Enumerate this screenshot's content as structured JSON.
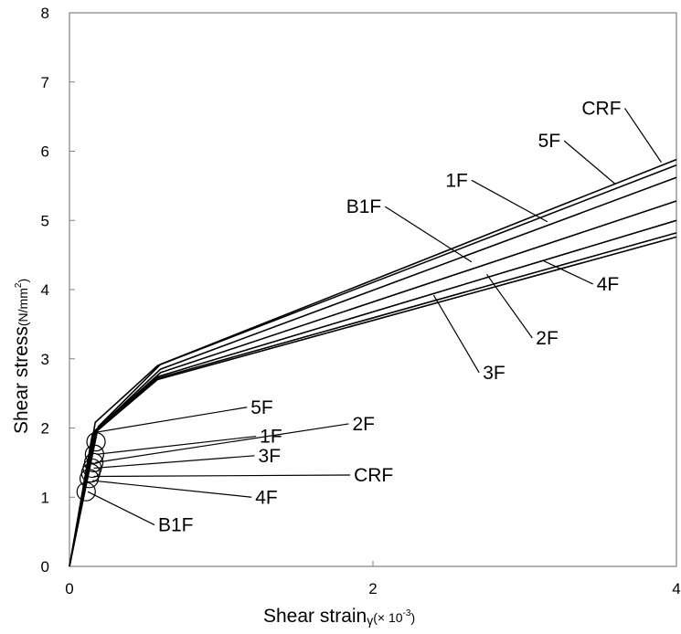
{
  "chart_data": {
    "type": "line",
    "xlabel": {
      "main": "Shear strain",
      "symbol": "γ",
      "unit_prefix": "(× 10",
      "unit_exp": "-3",
      "unit_suffix": ")"
    },
    "ylabel": {
      "main": "Shear stress",
      "unit_prefix": "(N/mm",
      "unit_exp": "2",
      "unit_suffix": ")"
    },
    "xlim": [
      0,
      4
    ],
    "ylim": [
      0,
      8
    ],
    "xticks": [
      0,
      2,
      4
    ],
    "yticks": [
      0,
      1,
      2,
      3,
      4,
      5,
      6,
      7,
      8
    ],
    "grid": false,
    "legend": "none",
    "series": [
      {
        "label": "CRF",
        "points": [
          [
            0,
            0
          ],
          [
            0.19,
            2.02
          ],
          [
            0.6,
            2.92
          ],
          [
            4,
            5.88
          ]
        ]
      },
      {
        "label": "5F",
        "points": [
          [
            0,
            0
          ],
          [
            0.17,
            2.08
          ],
          [
            0.58,
            2.9
          ],
          [
            4,
            5.8
          ]
        ]
      },
      {
        "label": "1F",
        "points": [
          [
            0,
            0
          ],
          [
            0.18,
            1.98
          ],
          [
            0.6,
            2.85
          ],
          [
            4,
            5.62
          ]
        ]
      },
      {
        "label": "B1F",
        "points": [
          [
            0,
            0
          ],
          [
            0.17,
            1.96
          ],
          [
            0.6,
            2.8
          ],
          [
            4,
            5.28
          ]
        ]
      },
      {
        "label": "4F",
        "points": [
          [
            0,
            0
          ],
          [
            0.16,
            1.95
          ],
          [
            0.58,
            2.74
          ],
          [
            4,
            5.0
          ]
        ]
      },
      {
        "label": "2F",
        "points": [
          [
            0,
            0
          ],
          [
            0.16,
            1.92
          ],
          [
            0.58,
            2.72
          ],
          [
            4,
            4.82
          ]
        ]
      },
      {
        "label": "3F",
        "points": [
          [
            0,
            0
          ],
          [
            0.15,
            1.9
          ],
          [
            0.58,
            2.7
          ],
          [
            4,
            4.76
          ]
        ]
      }
    ],
    "yield_markers": [
      {
        "label": "5F",
        "x": 0.175,
        "y": 1.8
      },
      {
        "label": "1F",
        "x": 0.165,
        "y": 1.62
      },
      {
        "label": "2F",
        "x": 0.16,
        "y": 1.5
      },
      {
        "label": "3F",
        "x": 0.15,
        "y": 1.42
      },
      {
        "label": "CRF",
        "x": 0.14,
        "y": 1.35
      },
      {
        "label": "4F",
        "x": 0.13,
        "y": 1.27
      },
      {
        "label": "B1F",
        "x": 0.11,
        "y": 1.08
      }
    ],
    "annotations": [
      {
        "text": "CRF",
        "target": [
          3.9,
          5.84
        ],
        "text_pos": [
          3.66,
          6.62
        ]
      },
      {
        "text": "5F",
        "target": [
          3.6,
          5.52
        ],
        "text_pos": [
          3.26,
          6.15
        ]
      },
      {
        "text": "1F",
        "target": [
          3.15,
          4.98
        ],
        "text_pos": [
          2.65,
          5.58
        ]
      },
      {
        "text": "B1F",
        "target": [
          2.65,
          4.4
        ],
        "text_pos": [
          2.08,
          5.2
        ]
      },
      {
        "text": "4F",
        "target": [
          3.12,
          4.42
        ],
        "text_pos": [
          3.45,
          4.08
        ]
      },
      {
        "text": "2F",
        "target": [
          2.75,
          4.22
        ],
        "text_pos": [
          3.05,
          3.3
        ]
      },
      {
        "text": "3F",
        "target": [
          2.4,
          3.92
        ],
        "text_pos": [
          2.7,
          2.8
        ]
      },
      {
        "text": "5F",
        "target": [
          0.18,
          1.94
        ],
        "text_pos": [
          1.17,
          2.3
        ]
      },
      {
        "text": "1F",
        "target": [
          0.18,
          1.62
        ],
        "text_pos": [
          1.23,
          1.88
        ]
      },
      {
        "text": "2F",
        "target": [
          0.17,
          1.5
        ],
        "text_pos": [
          1.84,
          2.06
        ]
      },
      {
        "text": "3F",
        "target": [
          0.16,
          1.42
        ],
        "text_pos": [
          1.22,
          1.6
        ]
      },
      {
        "text": "CRF",
        "target": [
          0.16,
          1.3
        ],
        "text_pos": [
          1.85,
          1.32
        ]
      },
      {
        "text": "4F",
        "target": [
          0.15,
          1.24
        ],
        "text_pos": [
          1.2,
          1.0
        ]
      },
      {
        "text": "B1F",
        "target": [
          0.12,
          1.08
        ],
        "text_pos": [
          0.56,
          0.6
        ]
      }
    ]
  }
}
